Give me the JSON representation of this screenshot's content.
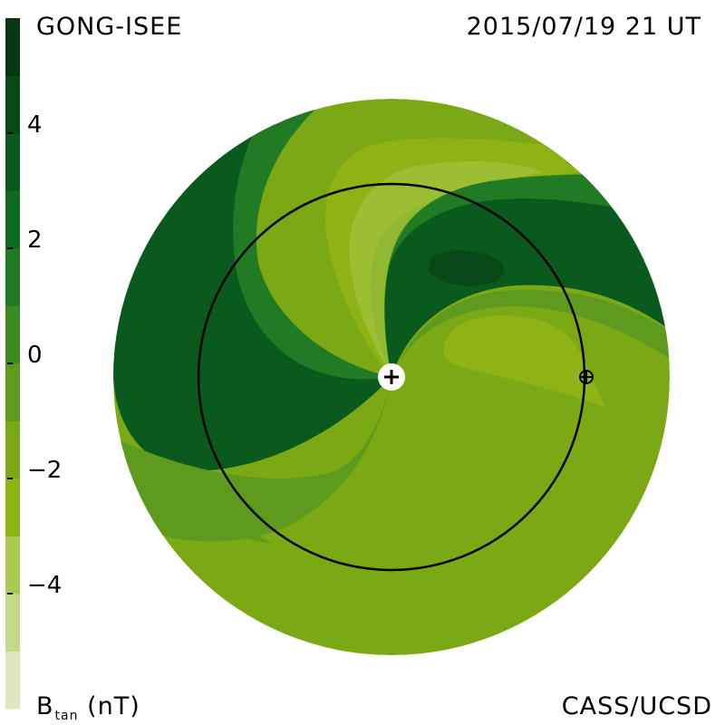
{
  "header": {
    "source": "GONG-ISEE",
    "datetime": "2015/07/19 21 UT"
  },
  "footer": {
    "quantity_main": "B",
    "quantity_sub": "tan",
    "quantity_unit": "(nT)",
    "credit": "CASS/UCSD"
  },
  "colorbar": {
    "ticks": [
      {
        "label": "4",
        "value": 4
      },
      {
        "label": "2",
        "value": 2
      },
      {
        "label": "0",
        "value": 0
      },
      {
        "label": "−2",
        "value": -2
      },
      {
        "label": "−4",
        "value": -4
      }
    ],
    "range": [
      -6,
      6
    ],
    "colors": [
      "#dde8c0",
      "#c6d98a",
      "#acc956",
      "#8db414",
      "#7ba916",
      "#5e9a1e",
      "#3b8a22",
      "#207b24",
      "#116a22",
      "#0b5a1d",
      "#084817",
      "#063711"
    ]
  },
  "map_legend": {
    "sun_marker_icon": "plus-in-white-circle-icon",
    "earth_marker_icon": "circled-plus-icon",
    "earth_orbit": "black circle"
  }
}
